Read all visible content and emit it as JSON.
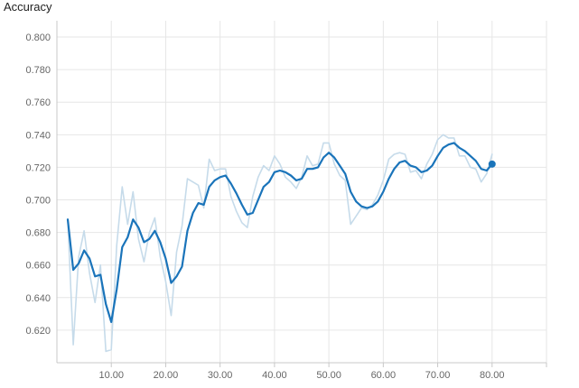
{
  "chart_data": {
    "type": "line",
    "title": "Accuracy",
    "xlabel": "",
    "ylabel": "",
    "xlim": [
      0,
      90
    ],
    "ylim": [
      0.6,
      0.81
    ],
    "grid": true,
    "x_ticks": [
      "10.00",
      "20.00",
      "30.00",
      "40.00",
      "50.00",
      "60.00",
      "70.00",
      "80.00"
    ],
    "y_ticks": [
      "0.620",
      "0.640",
      "0.660",
      "0.680",
      "0.700",
      "0.720",
      "0.740",
      "0.760",
      "0.780",
      "0.800"
    ],
    "colors": {
      "raw": "#c6dbea",
      "smoothed": "#1a74ba"
    },
    "series": [
      {
        "role": "raw",
        "x": [
          2,
          3,
          4,
          5,
          6,
          7,
          8,
          9,
          10,
          11,
          12,
          13,
          14,
          15,
          16,
          17,
          18,
          19,
          20,
          21,
          22,
          23,
          24,
          25,
          26,
          27,
          28,
          29,
          30,
          31,
          32,
          33,
          34,
          35,
          36,
          37,
          38,
          39,
          40,
          41,
          42,
          43,
          44,
          45,
          46,
          47,
          48,
          49,
          50,
          51,
          52,
          53,
          54,
          55,
          56,
          57,
          58,
          59,
          60,
          61,
          62,
          63,
          64,
          65,
          66,
          67,
          68,
          69,
          70,
          71,
          72,
          73,
          74,
          75,
          76,
          77,
          78,
          79,
          80
        ],
        "values": [
          0.688,
          0.611,
          0.665,
          0.681,
          0.655,
          0.637,
          0.66,
          0.607,
          0.608,
          0.672,
          0.708,
          0.685,
          0.705,
          0.676,
          0.662,
          0.68,
          0.689,
          0.665,
          0.65,
          0.629,
          0.668,
          0.684,
          0.713,
          0.711,
          0.709,
          0.695,
          0.725,
          0.718,
          0.719,
          0.719,
          0.702,
          0.693,
          0.686,
          0.683,
          0.702,
          0.714,
          0.721,
          0.718,
          0.727,
          0.722,
          0.714,
          0.711,
          0.707,
          0.714,
          0.727,
          0.721,
          0.722,
          0.735,
          0.735,
          0.722,
          0.715,
          0.712,
          0.685,
          0.69,
          0.695,
          0.694,
          0.697,
          0.703,
          0.712,
          0.725,
          0.728,
          0.729,
          0.728,
          0.717,
          0.718,
          0.713,
          0.722,
          0.728,
          0.737,
          0.74,
          0.738,
          0.738,
          0.727,
          0.727,
          0.72,
          0.719,
          0.711,
          0.716,
          0.728
        ]
      },
      {
        "role": "smoothed",
        "x": [
          2,
          3,
          4,
          5,
          6,
          7,
          8,
          9,
          10,
          11,
          12,
          13,
          14,
          15,
          16,
          17,
          18,
          19,
          20,
          21,
          22,
          23,
          24,
          25,
          26,
          27,
          28,
          29,
          30,
          31,
          32,
          33,
          34,
          35,
          36,
          37,
          38,
          39,
          40,
          41,
          42,
          43,
          44,
          45,
          46,
          47,
          48,
          49,
          50,
          51,
          52,
          53,
          54,
          55,
          56,
          57,
          58,
          59,
          60,
          61,
          62,
          63,
          64,
          65,
          66,
          67,
          68,
          69,
          70,
          71,
          72,
          73,
          74,
          75,
          76,
          77,
          78,
          79,
          80
        ],
        "values": [
          0.688,
          0.657,
          0.661,
          0.669,
          0.664,
          0.653,
          0.654,
          0.636,
          0.625,
          0.645,
          0.671,
          0.677,
          0.688,
          0.683,
          0.674,
          0.676,
          0.681,
          0.674,
          0.664,
          0.649,
          0.653,
          0.659,
          0.681,
          0.692,
          0.698,
          0.697,
          0.708,
          0.712,
          0.714,
          0.715,
          0.71,
          0.704,
          0.697,
          0.691,
          0.692,
          0.7,
          0.708,
          0.711,
          0.717,
          0.718,
          0.717,
          0.715,
          0.712,
          0.713,
          0.719,
          0.719,
          0.72,
          0.726,
          0.729,
          0.726,
          0.721,
          0.716,
          0.705,
          0.699,
          0.696,
          0.695,
          0.696,
          0.699,
          0.705,
          0.713,
          0.719,
          0.723,
          0.724,
          0.721,
          0.72,
          0.717,
          0.718,
          0.721,
          0.727,
          0.732,
          0.734,
          0.735,
          0.732,
          0.73,
          0.727,
          0.724,
          0.719,
          0.718,
          0.722
        ]
      }
    ]
  }
}
